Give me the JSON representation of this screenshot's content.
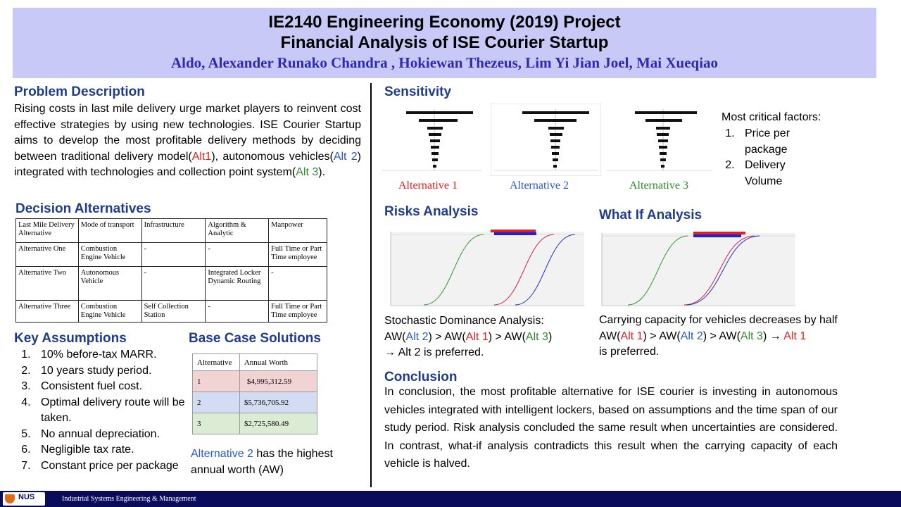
{
  "header": {
    "title_line1": "IE2140 Engineering Economy (2019) Project",
    "title_line2": "Financial Analysis of ISE Courier Startup",
    "authors": "Aldo, Alexander Runako Chandra , Hokiewan Thezeus, Lim Yi Jian Joel, Mai Xueqiao"
  },
  "problem": {
    "heading": "Problem Description",
    "text_before_alt1": "Rising costs in last mile delivery urge market players to reinvent cost effective strategies by using new technologies. ISE Courier Startup aims to develop the most profitable delivery methods by deciding between traditional delivery model(",
    "alt1": "Alt1",
    "text_mid1": "), autonomous vehicles(",
    "alt2": "Alt 2",
    "text_mid2": ") integrated with technologies and collection point system(",
    "alt3": "Alt 3",
    "text_end": ")."
  },
  "decision": {
    "heading": "Decision Alternatives",
    "columns": [
      "Last Mile Delivery Alternative",
      "Mode of transport",
      "Infrastructure",
      "Algorithm & Analytic",
      "Manpower"
    ],
    "rows": [
      [
        "Alternative One",
        "Combustion Engine Vehicle",
        "-",
        "-",
        "Full Time or Part Time employee"
      ],
      [
        "Alternative Two",
        "Autonomous Vehicle",
        "-",
        "Integrated Locker Dynamic Routing",
        "-"
      ],
      [
        "Alternative Three",
        "Combustion Engine Vehicle",
        "Self Collection Station",
        "-",
        "Full Time or Part Time employee"
      ]
    ]
  },
  "assumptions": {
    "heading": "Key Assumptions",
    "items": [
      "10% before-tax MARR.",
      "10 years study period.",
      "Consistent fuel cost.",
      "Optimal delivery route will be taken.",
      "No annual depreciation.",
      "Negligible tax rate.",
      "Constant price per package"
    ]
  },
  "base_case": {
    "heading": "Base Case Solutions",
    "columns": [
      "Alternative",
      "Annual Worth"
    ],
    "rows": [
      {
        "alt": "1",
        "aw": "$4,995,312.59",
        "color": "#f2d3d3"
      },
      {
        "alt": "2",
        "aw": "$5,736,705.92",
        "color": "#d3dcf2"
      },
      {
        "alt": "3",
        "aw": "$2,725,580.49",
        "color": "#dcebd3"
      }
    ],
    "note_alt": "Alternative 2",
    "note_rest": " has the highest annual worth (AW)"
  },
  "sensitivity": {
    "heading": "Sensitivity",
    "captions": [
      "Alternative 1",
      "Alternative 2",
      "Alternative 3"
    ],
    "critical_heading": "Most critical factors:",
    "critical_items": [
      "Price per package",
      "Delivery Volume"
    ]
  },
  "risks": {
    "heading": "Risks Analysis",
    "text1": "Stochastic Dominance Analysis:",
    "aw": "AW(",
    "alt2": "Alt 2",
    "alt1": "Alt 1",
    "alt3": "Alt 3",
    "gt1": ") > AW(",
    "gt2": ") > AW(",
    "close": ")",
    "arrow": "→ ",
    "preferred": " is preferred."
  },
  "whatif": {
    "heading": "What If Analysis",
    "text1": "Carrying capacity for vehicles decreases by half",
    "aw": "AW(",
    "alt1": "Alt 1",
    "alt2": "Alt 2",
    "alt3": "Alt 3",
    "gt1": ") > AW(",
    "gt2": ") > AW(",
    "close": ") → ",
    "preferred": "is preferred."
  },
  "conclusion": {
    "heading": "Conclusion",
    "text": "In conclusion, the most profitable alternative for ISE courier is investing in autonomous vehicles integrated with intelligent lockers, based on assumptions and the time span of our study period. Risk analysis concluded the same result when uncertainties are considered. In contrast, what-if analysis contradicts this result when the carrying capacity of each vehicle is halved."
  },
  "footer": {
    "logo": "NUS",
    "text": "Industrial Systems Engineering & Management"
  },
  "colors": {
    "header_bg": "#c9c9f7",
    "heading": "#1f3c8c",
    "alt1": "#e0201e",
    "alt2": "#2a57c8",
    "alt3": "#2f8a2f",
    "footer_bg": "#0b0b5c"
  }
}
